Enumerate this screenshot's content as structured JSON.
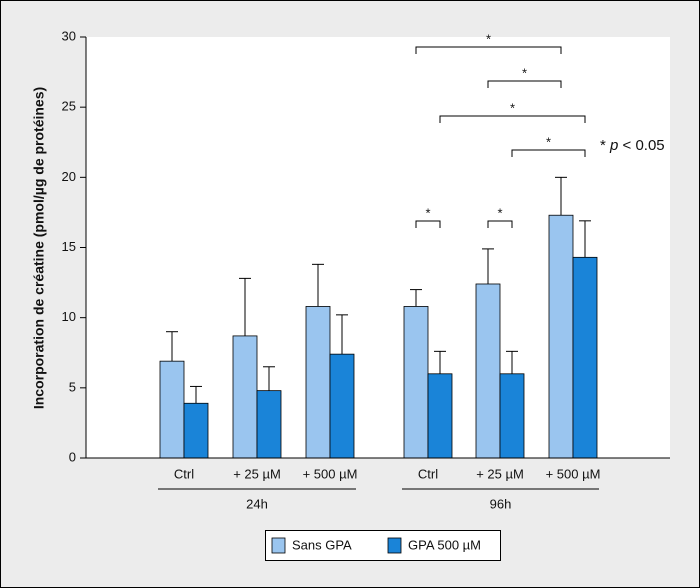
{
  "chart_data": {
    "type": "bar",
    "y_label": "Incorporation de créatine (pmol/µg de protéines)",
    "categories": [
      "Ctrl",
      "+ 25 µM",
      "+ 500 µM",
      "Ctrl",
      "+ 25 µM",
      "+ 500 µM"
    ],
    "groups": [
      {
        "label": "24h",
        "categories": [
          0,
          1,
          2
        ]
      },
      {
        "label": "96h",
        "categories": [
          3,
          4,
          5
        ]
      }
    ],
    "series": [
      {
        "name": "Sans GPA",
        "color": "#9ac5ef",
        "values": [
          6.9,
          8.7,
          10.8,
          10.8,
          12.4,
          17.3
        ],
        "errors": [
          2.1,
          4.1,
          3.0,
          1.2,
          2.5,
          2.7
        ]
      },
      {
        "name": "GPA 500 µM",
        "color": "#1a84d8",
        "values": [
          3.9,
          4.8,
          7.4,
          6.0,
          6.0,
          14.3
        ],
        "errors": [
          1.2,
          1.7,
          2.8,
          1.6,
          1.6,
          2.6
        ]
      }
    ],
    "ylim": [
      0,
      30
    ],
    "yticks": [
      0,
      5,
      10,
      15,
      20,
      25,
      30
    ],
    "annotations": [
      "*",
      "*",
      "*",
      "*",
      "*",
      "*"
    ],
    "note": {
      "star": "*",
      "p": "p",
      "rest": "< 0.05"
    }
  }
}
